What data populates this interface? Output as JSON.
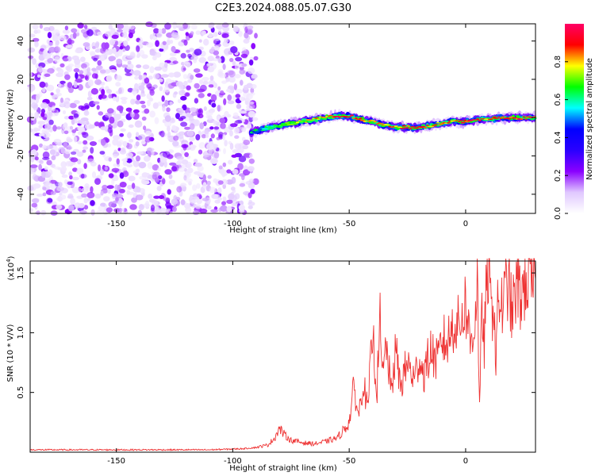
{
  "title": "C2E3.2024.088.05.07.G30",
  "chart_data": [
    {
      "type": "heatmap",
      "xlabel": "Height of straight line (km)",
      "ylabel": "Frequency (Hz)",
      "xlim": [
        -187,
        30
      ],
      "ylim": [
        -50,
        49
      ],
      "x_ticks": [
        -150,
        -100,
        -50,
        0
      ],
      "x_tick_labels": [
        "-150",
        "-100",
        "-50",
        "0"
      ],
      "y_ticks": [
        -40,
        -20,
        0,
        20,
        40
      ],
      "y_tick_labels": [
        "-40",
        "-20",
        "0",
        "20",
        "40"
      ],
      "colorbar": {
        "label": "Normalized spectral amplitude",
        "range": [
          0,
          1
        ],
        "ticks": [
          0.0,
          0.2,
          0.4,
          0.6,
          0.8
        ],
        "tick_labels": [
          "0.0",
          "0.2",
          "0.4",
          "0.6",
          "0.8"
        ],
        "colormap": [
          "#ffffff",
          "#e0c8ff",
          "#8a00ff",
          "#2a00ff",
          "#0000ff",
          "#00ffff",
          "#00ff00",
          "#ffff00",
          "#ff0000",
          "#ff0066"
        ]
      },
      "noise_region": {
        "x_range": [
          -187,
          -90
        ],
        "freq_range": [
          -50,
          49
        ],
        "amplitude_range": [
          0.0,
          0.1
        ]
      },
      "signal_ridge": {
        "x": [
          -92,
          -88,
          -84,
          -80,
          -75,
          -70,
          -65,
          -60,
          -55,
          -50,
          -45,
          -40,
          -35,
          -30,
          -25,
          -20,
          -15,
          -10,
          -5,
          0,
          5,
          10,
          15,
          20,
          25,
          30
        ],
        "frequency": [
          -8,
          -6,
          -5,
          -4,
          -3,
          -2,
          -1,
          0,
          1,
          1,
          -1,
          -2,
          -4,
          -5,
          -5,
          -5,
          -4,
          -3,
          -2,
          -2,
          -1,
          -1,
          0,
          0,
          0,
          0
        ],
        "peak_amplitude": [
          0.4,
          0.5,
          0.6,
          0.65,
          0.7,
          0.75,
          0.8,
          0.85,
          0.9,
          0.9,
          0.85,
          0.8,
          0.8,
          0.85,
          0.9,
          0.9,
          0.85,
          0.8,
          0.85,
          0.9,
          0.9,
          0.85,
          0.9,
          0.9,
          0.9,
          0.9
        ]
      }
    },
    {
      "type": "line",
      "xlabel": "Height of straight line (km)",
      "ylabel": "SNR (10 * V/V)",
      "scale_label": "(x10",
      "scale_exponent": "4",
      "scale_suffix": ")",
      "xlim": [
        -187,
        30
      ],
      "ylim": [
        0,
        1.6
      ],
      "x_ticks": [
        -150,
        -100,
        -50,
        0
      ],
      "x_tick_labels": [
        "-150",
        "-100",
        "-50",
        "0"
      ],
      "y_ticks": [
        0.5,
        1.0,
        1.5
      ],
      "y_tick_labels": [
        "0.5",
        "1.0",
        "1.5"
      ],
      "series": [
        {
          "color": "#ee3333",
          "x": [
            -187,
            -170,
            -150,
            -130,
            -110,
            -95,
            -90,
            -85,
            -82,
            -80,
            -78,
            -75,
            -70,
            -65,
            -60,
            -55,
            -50,
            -48,
            -46,
            -44,
            -42,
            -40,
            -38,
            -37,
            -36,
            -34,
            -32,
            -30,
            -28,
            -25,
            -22,
            -20,
            -18,
            -15,
            -12,
            -10,
            -8,
            -5,
            -3,
            0,
            2,
            4,
            5,
            6,
            7,
            8,
            9,
            10,
            11,
            12,
            13,
            14,
            16,
            18,
            20,
            22,
            24,
            26,
            28,
            30
          ],
          "y": [
            0.02,
            0.02,
            0.02,
            0.02,
            0.02,
            0.03,
            0.04,
            0.06,
            0.12,
            0.2,
            0.15,
            0.1,
            0.08,
            0.07,
            0.09,
            0.12,
            0.25,
            0.55,
            0.3,
            0.6,
            0.35,
            1.0,
            0.5,
            1.25,
            0.6,
            0.9,
            0.5,
            0.85,
            0.55,
            0.75,
            0.6,
            0.8,
            0.65,
            0.85,
            0.75,
            0.95,
            0.9,
            1.1,
            1.05,
            1.25,
            0.9,
            1.1,
            1.5,
            0.35,
            1.2,
            0.9,
            1.4,
            1.65,
            1.1,
            1.35,
            0.75,
            1.3,
            1.2,
            1.45,
            1.15,
            1.4,
            1.3,
            1.48,
            1.35,
            1.45
          ]
        }
      ]
    }
  ]
}
